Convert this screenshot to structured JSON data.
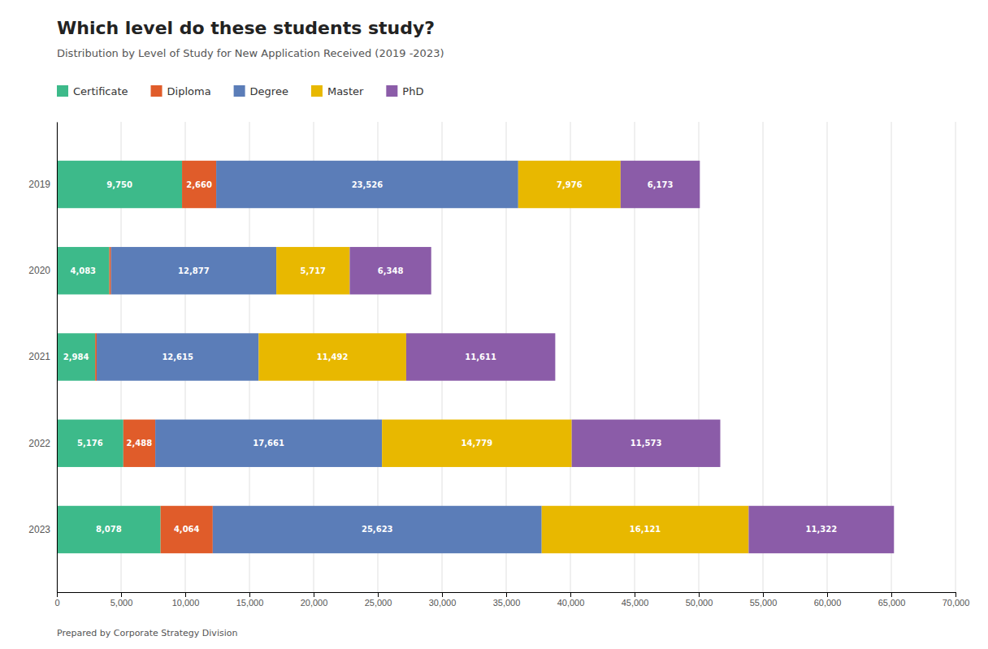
{
  "chart_data": {
    "type": "bar",
    "orientation": "horizontal",
    "stacked": true,
    "title": "Which level do these students study?",
    "subtitle": "Distribution by Level of Study for New Application Received (2019 -2023)",
    "annotations": [
      "Prepared by Corporate Strategy Division"
    ],
    "categories": [
      "2019",
      "2020",
      "2021",
      "2022",
      "2023"
    ],
    "series": [
      {
        "name": "Certificate",
        "color": "#3dba8a",
        "values": [
          9750,
          4083,
          2984,
          5176,
          8078
        ],
        "value_labels": [
          "9,750",
          "4,083",
          "2,984",
          "5,176",
          "8,078"
        ]
      },
      {
        "name": "Diploma",
        "color": "#e05c2a",
        "values": [
          2660,
          135,
          120,
          2488,
          4064
        ],
        "value_labels": [
          "2,660",
          null,
          null,
          "2,488",
          "4,064"
        ]
      },
      {
        "name": "Degree",
        "color": "#5b7db8",
        "values": [
          23526,
          12877,
          12615,
          17661,
          25623
        ],
        "value_labels": [
          "23,526",
          "12,877",
          "12,615",
          "17,661",
          "25,623"
        ]
      },
      {
        "name": "Master",
        "color": "#e8b800",
        "values": [
          7976,
          5717,
          11492,
          14779,
          16121
        ],
        "value_labels": [
          "7,976",
          "5,717",
          "11,492",
          "14,779",
          "16,121"
        ]
      },
      {
        "name": "PhD",
        "color": "#8b5ca8",
        "values": [
          6173,
          6348,
          11611,
          11573,
          11322
        ],
        "value_labels": [
          "6,173",
          "6,348",
          "11,611",
          "11,573",
          "11,322"
        ]
      }
    ],
    "xlim": [
      0,
      70000
    ],
    "xticks": [
      0,
      {
        "value": 5000,
        "label": "5,000"
      },
      {
        "value": 10000,
        "label": "10,000"
      },
      {
        "value": 15000,
        "label": "15,000"
      },
      {
        "value": 20000,
        "label": "20,000"
      },
      {
        "value": 25000,
        "label": "25,000"
      },
      {
        "value": 30000,
        "label": "30,000"
      },
      {
        "value": 35000,
        "label": "35,000"
      },
      {
        "value": 40000,
        "label": "40,000"
      },
      {
        "value": 45000,
        "label": "45,000"
      },
      {
        "value": 50000,
        "label": "50,000"
      },
      {
        "value": 55000,
        "label": "55,000"
      },
      {
        "value": 60000,
        "label": "60,000"
      },
      {
        "value": 65000,
        "label": "65,000"
      },
      {
        "value": 70000,
        "label": "70,000"
      }
    ],
    "grid": true,
    "legend": "top",
    "data_labels": true
  }
}
